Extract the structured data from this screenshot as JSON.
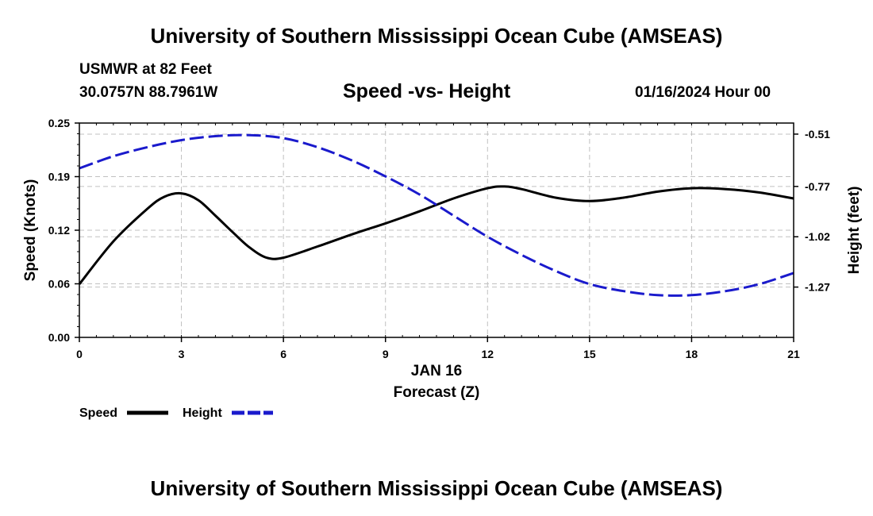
{
  "header": {
    "title": "University of Southern Mississippi Ocean Cube (AMSEAS)",
    "station": "USMWR at 82 Feet",
    "coords": "30.0757N  88.7961W",
    "date": "01/16/2024 Hour 00"
  },
  "footer": {
    "title": "University of Southern Mississippi Ocean Cube (AMSEAS)"
  },
  "colors": {
    "speed": "#000000",
    "height": "#1a1acc",
    "grid": "#c0c0c0"
  },
  "chart_data": {
    "type": "line",
    "title": "Speed -vs- Height",
    "xlabel_date": "JAN 16",
    "xlabel": "Forecast (Z)",
    "ylabel_left": "Speed (Knots)",
    "ylabel_right": "Height (feet)",
    "xlim": [
      0,
      21
    ],
    "ylim_left": [
      0,
      0.25
    ],
    "ylim_right": [
      -1.52,
      -0.455
    ],
    "grid": true,
    "x_ticks": [
      0,
      3,
      6,
      9,
      12,
      15,
      18,
      21
    ],
    "x_tick_labels": [
      "0",
      "3",
      "6",
      "9",
      "12",
      "15",
      "18",
      "21"
    ],
    "y_left_ticks": [
      0,
      0.0625,
      0.125,
      0.1875,
      0.25
    ],
    "y_left_tick_labels": [
      "0.00",
      "0.06",
      "0.12",
      "0.19",
      "0.25"
    ],
    "y_right_ticks": [
      -0.51,
      -0.77,
      -1.02,
      -1.27
    ],
    "y_right_tick_labels": [
      "-0.51",
      "-0.77",
      "-1.02",
      "-1.27"
    ],
    "legend": [
      {
        "name": "Speed",
        "style": "solid"
      },
      {
        "name": "Height",
        "style": "dashed"
      }
    ],
    "series": [
      {
        "name": "Speed",
        "axis": "left",
        "x": [
          0,
          1,
          2,
          2.5,
          3,
          3.5,
          4,
          4.5,
          5,
          5.5,
          6,
          7,
          8,
          9,
          10,
          11,
          12,
          12.5,
          13,
          14,
          15,
          16,
          17,
          18,
          19,
          20,
          21
        ],
        "values": [
          0.062,
          0.112,
          0.15,
          0.164,
          0.168,
          0.16,
          0.142,
          0.123,
          0.105,
          0.093,
          0.093,
          0.106,
          0.12,
          0.133,
          0.147,
          0.162,
          0.174,
          0.176,
          0.173,
          0.163,
          0.159,
          0.163,
          0.17,
          0.174,
          0.173,
          0.169,
          0.162
        ]
      },
      {
        "name": "Height",
        "axis": "right",
        "x": [
          0,
          1,
          2,
          3,
          4,
          5,
          6,
          7,
          8,
          9,
          10,
          11,
          12,
          13,
          14,
          15,
          16,
          17,
          18,
          19,
          20,
          21
        ],
        "values": [
          -0.68,
          -0.62,
          -0.575,
          -0.54,
          -0.52,
          -0.515,
          -0.53,
          -0.575,
          -0.64,
          -0.72,
          -0.81,
          -0.915,
          -1.02,
          -1.11,
          -1.19,
          -1.255,
          -1.29,
          -1.31,
          -1.31,
          -1.29,
          -1.255,
          -1.2
        ]
      }
    ]
  }
}
